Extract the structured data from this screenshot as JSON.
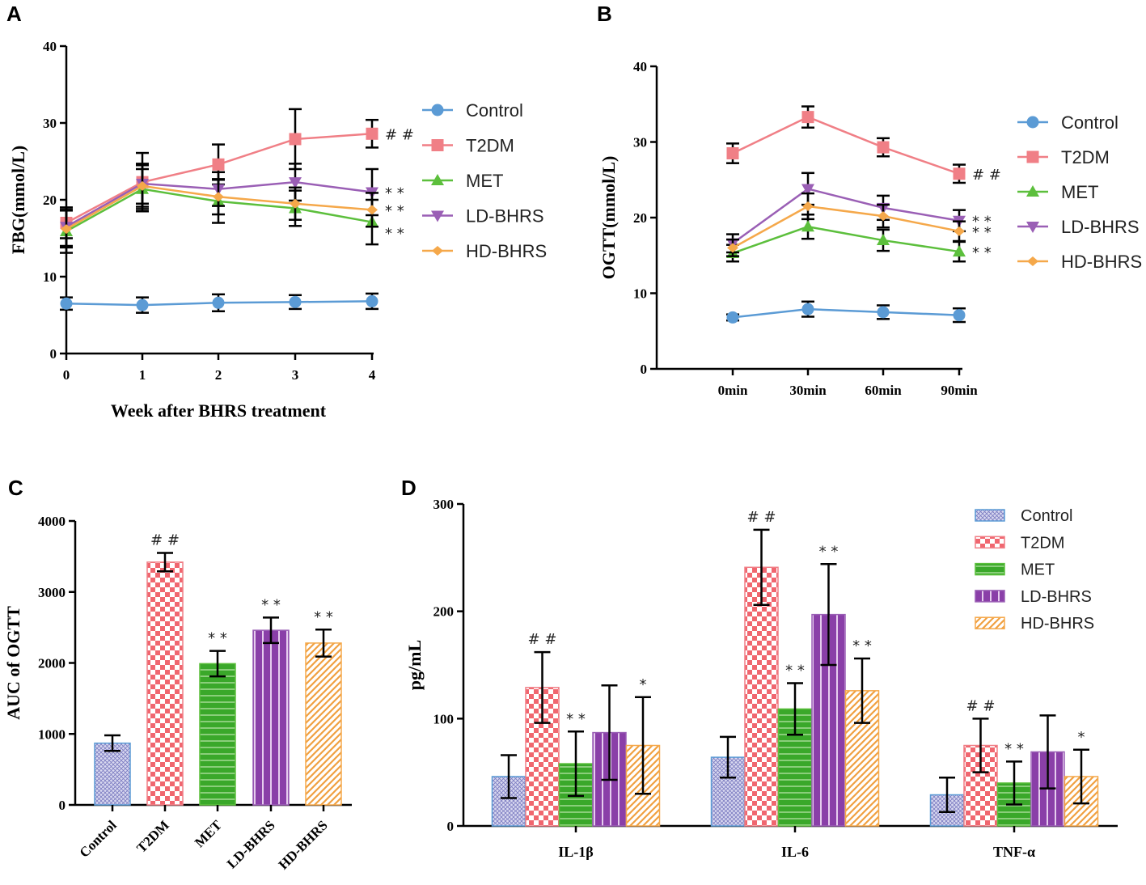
{
  "colors": {
    "Control": "#5b9bd5",
    "T2DM": "#f07f86",
    "MET": "#5cbf3c",
    "LD-BHRS": "#9a5fb5",
    "HD-BHRS": "#f5a84a"
  },
  "chart_data": [
    {
      "panel": "A",
      "type": "line",
      "xlabel": "Week after BHRS treatment",
      "ylabel": "FBG(mmol/L)",
      "categories": [
        "0",
        "1",
        "2",
        "3",
        "4"
      ],
      "ylim": [
        0,
        40
      ],
      "yticks": [
        "0",
        "10",
        "20",
        "30",
        "40"
      ],
      "legend": "right",
      "series": [
        {
          "name": "Control",
          "marker": "circle",
          "values": [
            6.5,
            6.3,
            6.6,
            6.7,
            6.8
          ],
          "errors": [
            0.8,
            1.0,
            1.1,
            0.9,
            1.0
          ]
        },
        {
          "name": "T2DM",
          "marker": "square",
          "values": [
            17.0,
            22.3,
            24.6,
            27.9,
            28.6
          ],
          "errors": [
            2.0,
            3.8,
            2.6,
            3.9,
            1.8
          ]
        },
        {
          "name": "MET",
          "marker": "triangle-up",
          "values": [
            15.9,
            21.4,
            19.8,
            18.9,
            17.1
          ],
          "errors": [
            2.8,
            2.6,
            2.8,
            2.3,
            2.9
          ]
        },
        {
          "name": "LD-BHRS",
          "marker": "triangle-down",
          "values": [
            16.5,
            22.1,
            21.4,
            22.3,
            21.0
          ],
          "errors": [
            2.5,
            2.6,
            2.2,
            2.4,
            3.0
          ]
        },
        {
          "name": "HD-BHRS",
          "marker": "diamond",
          "values": [
            16.2,
            21.8,
            20.4,
            19.5,
            18.7
          ],
          "errors": [
            2.4,
            2.7,
            2.3,
            2.1,
            2.2
          ]
        }
      ],
      "annotations": [
        {
          "series": "T2DM",
          "index": 4,
          "text": "##"
        },
        {
          "series": "LD-BHRS",
          "index": 4,
          "text": "**"
        },
        {
          "series": "HD-BHRS",
          "index": 4,
          "text": "**"
        },
        {
          "series": "MET",
          "index": 4,
          "text": "**"
        }
      ]
    },
    {
      "panel": "B",
      "type": "line",
      "xlabel": "",
      "ylabel": "OGTT(mmol/L)",
      "categories": [
        "0min",
        "30min",
        "60min",
        "90min"
      ],
      "ylim": [
        0,
        40
      ],
      "yticks": [
        "0",
        "10",
        "20",
        "30",
        "40"
      ],
      "legend": "right",
      "series": [
        {
          "name": "Control",
          "marker": "circle",
          "values": [
            6.8,
            7.9,
            7.5,
            7.1
          ],
          "errors": [
            0.4,
            1.0,
            0.9,
            0.9
          ]
        },
        {
          "name": "T2DM",
          "marker": "square",
          "values": [
            28.5,
            33.3,
            29.3,
            25.8
          ],
          "errors": [
            1.3,
            1.4,
            1.2,
            1.2
          ]
        },
        {
          "name": "MET",
          "marker": "triangle-up",
          "values": [
            15.3,
            18.8,
            17.0,
            15.5
          ],
          "errors": [
            1.1,
            1.6,
            1.4,
            1.3
          ]
        },
        {
          "name": "LD-BHRS",
          "marker": "triangle-down",
          "values": [
            16.6,
            23.8,
            21.3,
            19.6
          ],
          "errors": [
            1.2,
            2.1,
            1.6,
            1.4
          ]
        },
        {
          "name": "HD-BHRS",
          "marker": "diamond",
          "values": [
            16.0,
            21.5,
            20.2,
            18.2
          ],
          "errors": [
            1.1,
            1.7,
            1.5,
            1.3
          ]
        }
      ],
      "annotations": [
        {
          "series": "T2DM",
          "index": 3,
          "text": "##"
        },
        {
          "series": "LD-BHRS",
          "index": 3,
          "text": "**"
        },
        {
          "series": "HD-BHRS",
          "index": 3,
          "text": "**"
        },
        {
          "series": "MET",
          "index": 3,
          "text": "**"
        }
      ]
    },
    {
      "panel": "C",
      "type": "bar",
      "xlabel": "",
      "ylabel": "AUC of OGTT",
      "categories": [
        "Control",
        "T2DM",
        "MET",
        "LD-BHRS",
        "HD-BHRS"
      ],
      "ylim": [
        0,
        4000
      ],
      "yticks": [
        "0",
        "1000",
        "2000",
        "3000",
        "4000"
      ],
      "values": [
        870,
        3420,
        1990,
        2460,
        2280
      ],
      "errors": [
        110,
        130,
        180,
        180,
        190
      ],
      "annotations": [
        "",
        "##",
        "**",
        "**",
        "**"
      ]
    },
    {
      "panel": "D",
      "type": "bar",
      "xlabel": "",
      "ylabel": "pg/mL",
      "categories": [
        "IL-1β",
        "IL-6",
        "TNF-α"
      ],
      "ylim": [
        0,
        300
      ],
      "yticks": [
        "0",
        "100",
        "200",
        "300"
      ],
      "legend": "top-right",
      "series": [
        {
          "name": "Control",
          "values": [
            46,
            64,
            29
          ],
          "errors": [
            20,
            19,
            16
          ],
          "annotations": [
            "",
            "",
            ""
          ]
        },
        {
          "name": "T2DM",
          "values": [
            129,
            241,
            75
          ],
          "errors": [
            33,
            35,
            25
          ],
          "annotations": [
            "##",
            "##",
            "##"
          ]
        },
        {
          "name": "MET",
          "values": [
            58,
            109,
            40
          ],
          "errors": [
            30,
            24,
            20
          ],
          "annotations": [
            "**",
            "**",
            "**"
          ]
        },
        {
          "name": "LD-BHRS",
          "values": [
            87,
            197,
            69
          ],
          "errors": [
            44,
            47,
            34
          ],
          "annotations": [
            "",
            "**",
            ""
          ]
        },
        {
          "name": "HD-BHRS",
          "values": [
            75,
            126,
            46
          ],
          "errors": [
            45,
            30,
            25
          ],
          "annotations": [
            "*",
            "**",
            "*"
          ]
        }
      ]
    }
  ]
}
